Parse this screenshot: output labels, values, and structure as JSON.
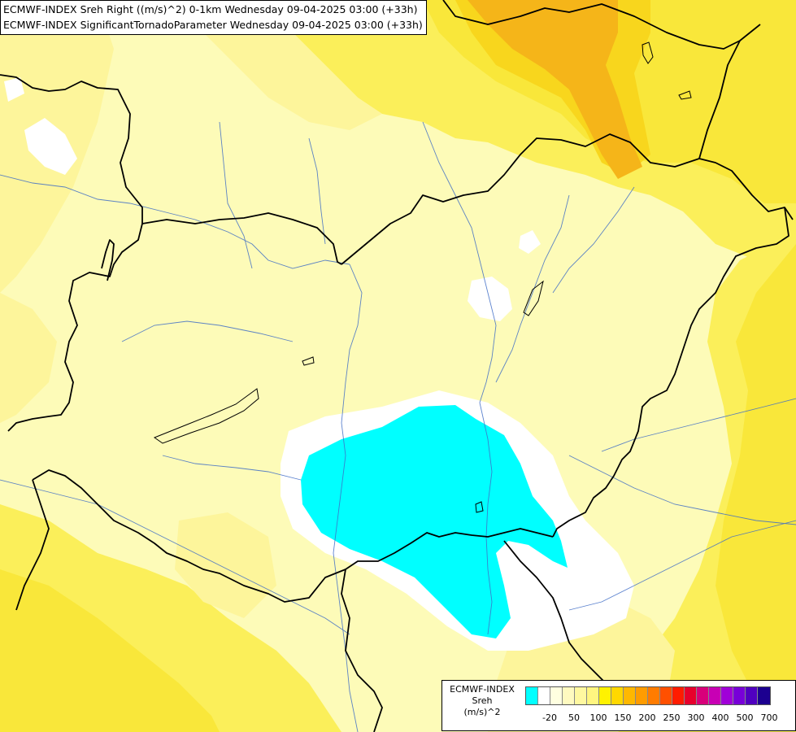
{
  "header": {
    "line1": "ECMWF-INDEX Sreh Right ((m/s)^2) 0-1km Wednesday 09-04-2025 03:00 (+33h)",
    "line2": "ECMWF-INDEX SignificantTornadoParameter Wednesday 09-04-2025 03:00 (+33h)"
  },
  "legend": {
    "model": "ECMWF-INDEX",
    "param": "Sreh",
    "unit": "(m/s)^2",
    "colors": [
      "#00ffff",
      "#ffffff",
      "#ffffe0",
      "#fffac0",
      "#fff8a0",
      "#fff580",
      "#fff200",
      "#ffd800",
      "#ffb800",
      "#ff9c00",
      "#ff7c00",
      "#ff5000",
      "#ff1c00",
      "#e8002c",
      "#d8007a",
      "#c800b4",
      "#a000d8",
      "#7800d8",
      "#5000c0",
      "#1c0090"
    ],
    "ticks": [
      "-20",
      "50",
      "100",
      "150",
      "200",
      "250",
      "300",
      "400",
      "500",
      "700"
    ]
  },
  "map": {
    "palette": {
      "pale": "#fdfbb8",
      "light": "#fdf59b",
      "yellow": "#fbef5a",
      "bright": "#f9e73a",
      "gold": "#f8d61d",
      "orange": "#f5b519",
      "white": "#ffffff",
      "cyan": "#00ffff"
    }
  }
}
